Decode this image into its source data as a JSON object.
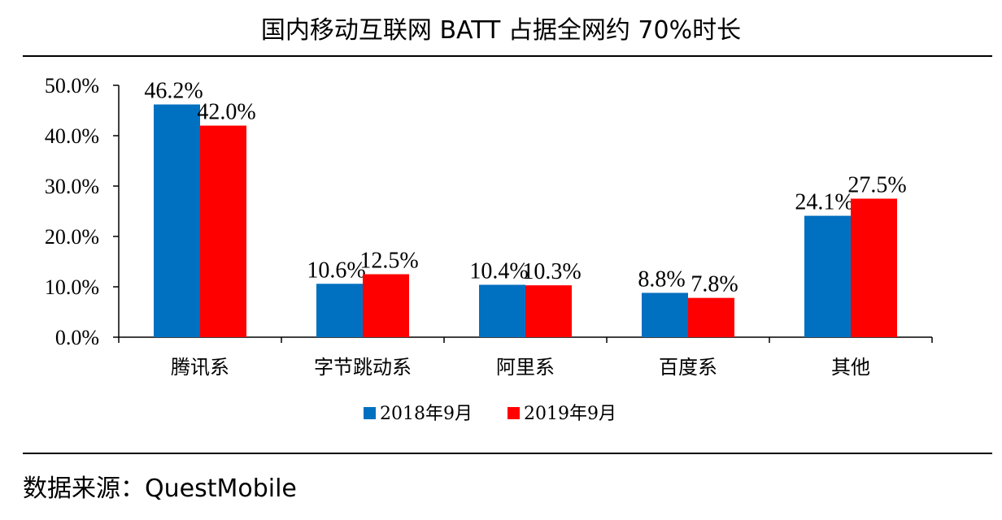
{
  "title": "国内移动互联网 BATT 占据全网约 70%时长",
  "source": "数据来源：QuestMobile",
  "chart_data": {
    "type": "bar",
    "title": "国内移动互联网 BATT 占据全网约 70%时长",
    "categories": [
      "腾讯系",
      "字节跳动系",
      "阿里系",
      "百度系",
      "其他"
    ],
    "series": [
      {
        "name": "2018年9月",
        "values": [
          46.2,
          10.6,
          10.4,
          8.8,
          24.1
        ],
        "labels": [
          "46.2%",
          "10.6%",
          "10.4%",
          "8.8%",
          "24.1%"
        ],
        "color": "#0070C0"
      },
      {
        "name": "2019年9月",
        "values": [
          42.0,
          12.5,
          10.3,
          7.8,
          27.5
        ],
        "labels": [
          "42.0%",
          "12.5%",
          "10.3%",
          "7.8%",
          "27.5%"
        ],
        "color": "#FF0000"
      }
    ],
    "ylim": [
      0,
      50
    ],
    "yticks": [
      "0.0%",
      "10.0%",
      "20.0%",
      "30.0%",
      "40.0%",
      "50.0%"
    ],
    "xlabel": "",
    "ylabel": "",
    "grid": false,
    "legend": "bottom"
  }
}
